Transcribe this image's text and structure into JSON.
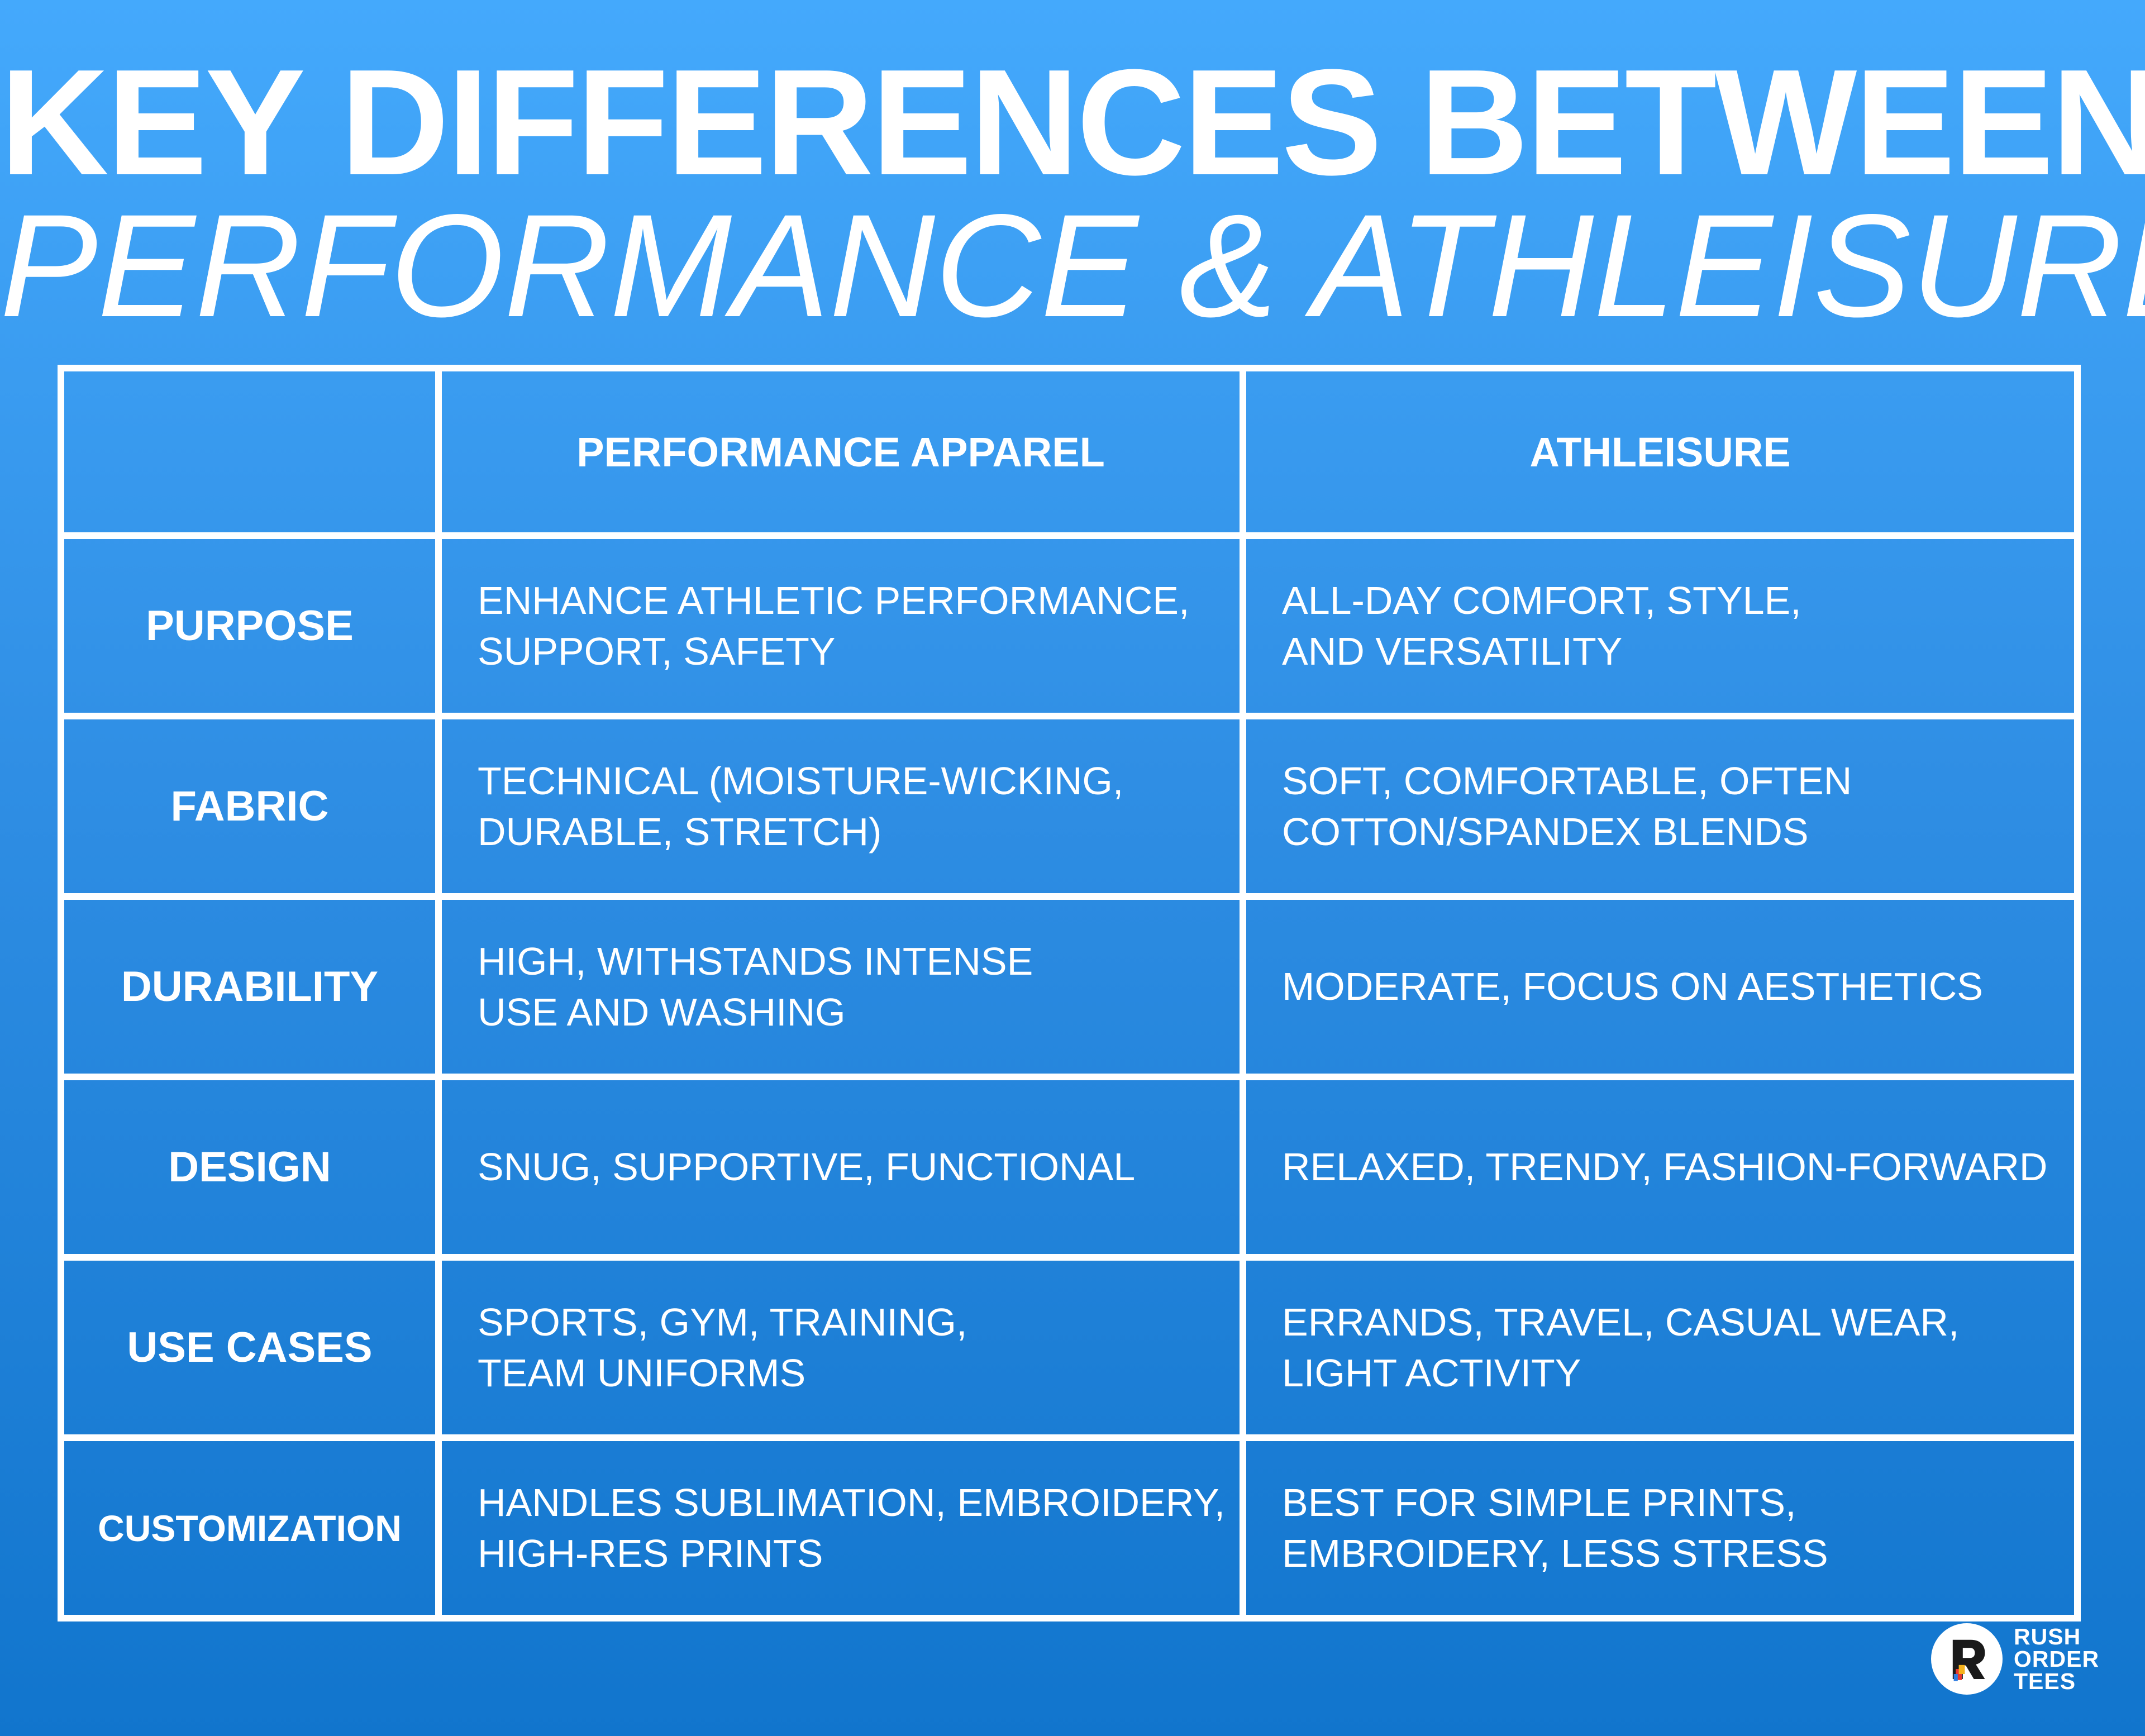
{
  "title": {
    "line1": "KEY DIFFERENCES BETWEEN",
    "line2": "PERFORMANCE & ATHLEISURE"
  },
  "table": {
    "corner": "",
    "columns": [
      "PERFORMANCE APPAREL",
      "ATHLEISURE"
    ],
    "rows": [
      {
        "label": "PURPOSE",
        "performance": "ENHANCE ATHLETIC PERFORMANCE,\nSUPPORT, SAFETY",
        "athleisure": "ALL-DAY COMFORT, STYLE,\nAND VERSATILITY"
      },
      {
        "label": "FABRIC",
        "performance": "TECHNICAL (MOISTURE-WICKING,\nDURABLE, STRETCH)",
        "athleisure": "SOFT, COMFORTABLE, OFTEN\nCOTTON/SPANDEX BLENDS"
      },
      {
        "label": "DURABILITY",
        "performance": "HIGH, WITHSTANDS INTENSE\nUSE AND WASHING",
        "athleisure": "MODERATE, FOCUS ON AESTHETICS"
      },
      {
        "label": "DESIGN",
        "performance": "SNUG, SUPPORTIVE, FUNCTIONAL",
        "athleisure": "RELAXED, TRENDY, FASHION-FORWARD"
      },
      {
        "label": "USE CASES",
        "performance": "SPORTS, GYM, TRAINING,\nTEAM UNIFORMS",
        "athleisure": "ERRANDS, TRAVEL, CASUAL WEAR,\nLIGHT ACTIVITY"
      },
      {
        "label": "CUSTOMIZATION",
        "performance": "HANDLES SUBLIMATION, EMBROIDERY,\nHIGH-RES PRINTS",
        "athleisure": "BEST FOR SIMPLE PRINTS,\nEMBROIDERY, LESS STRESS"
      }
    ]
  },
  "logo": {
    "icon": "rush-order-tees-r-logo",
    "line1": "RUSH",
    "line2": "ORDER",
    "line3": "TEES"
  },
  "colors": {
    "background_top": "#44a9fc",
    "background_bottom": "#1175cd",
    "text": "#ffffff",
    "grid": "#ffffff"
  }
}
